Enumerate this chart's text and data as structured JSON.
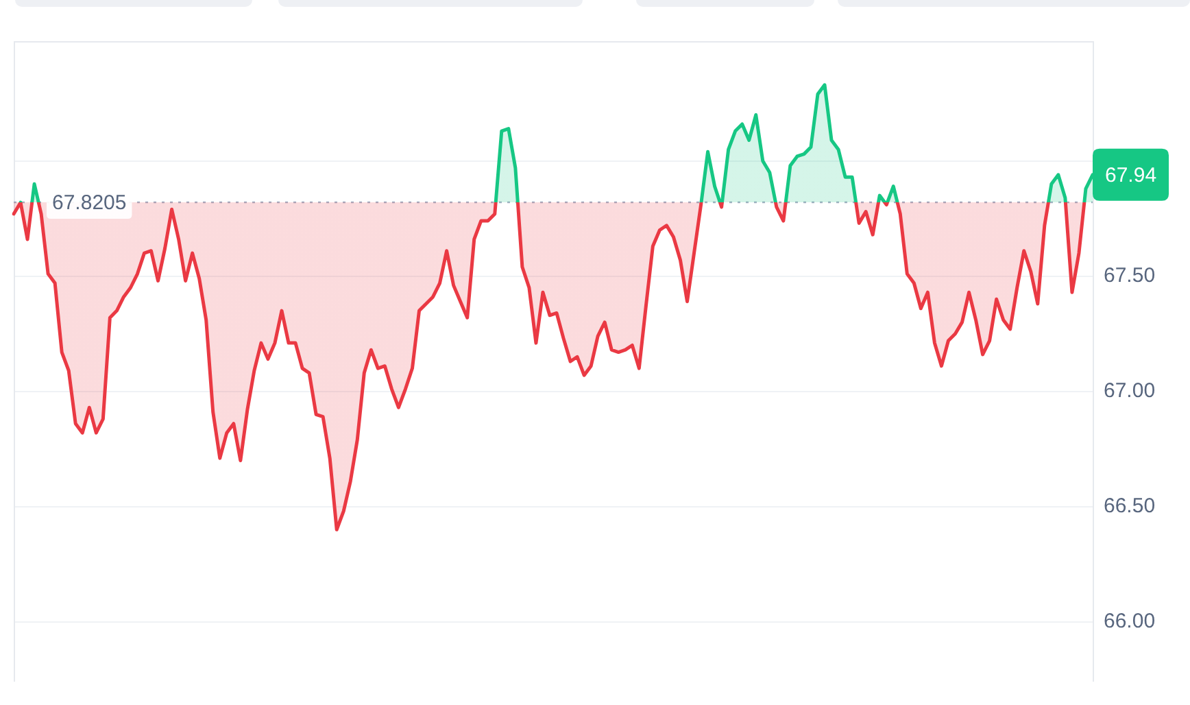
{
  "chart_data": {
    "type": "area",
    "categories": [
      null,
      null,
      null,
      null,
      null,
      null,
      null,
      null,
      null,
      null,
      null,
      null,
      null,
      null,
      null,
      null,
      null,
      null,
      null,
      null,
      null,
      null,
      null,
      null,
      null,
      null,
      null,
      null,
      null,
      null,
      null,
      null,
      null,
      null,
      null,
      null,
      null,
      null,
      null,
      null,
      null,
      null,
      null,
      null,
      null,
      null,
      null,
      null,
      null,
      null,
      null,
      null,
      null,
      null,
      null,
      null,
      null,
      null,
      null,
      null,
      null,
      null,
      null,
      null,
      null,
      null,
      null,
      null,
      null,
      null,
      null,
      null,
      null,
      null,
      null,
      null,
      null,
      null,
      null,
      null,
      null,
      null,
      null,
      null,
      null,
      null,
      null,
      null,
      null,
      null,
      null,
      null,
      null,
      null,
      null,
      null,
      null,
      null,
      null,
      null,
      null,
      null,
      null,
      null,
      null,
      null,
      null,
      null,
      null,
      null,
      null,
      null,
      null,
      null,
      null,
      null,
      null,
      null,
      null,
      null,
      null,
      null,
      null,
      null,
      null,
      null,
      null,
      null,
      null,
      null,
      null,
      null,
      null,
      null,
      null,
      null,
      null,
      null,
      null,
      null,
      null,
      null,
      null,
      null,
      null,
      null,
      null,
      null,
      null,
      null,
      null,
      null,
      null,
      null,
      null,
      null,
      null,
      null
    ],
    "series": [
      {
        "values": [
          67.77,
          67.82,
          67.66,
          67.9,
          67.77,
          67.51,
          67.47,
          67.17,
          67.09,
          66.86,
          66.82,
          66.93,
          66.82,
          66.88,
          67.32,
          67.35,
          67.41,
          67.45,
          67.51,
          67.6,
          67.61,
          67.48,
          67.62,
          67.79,
          67.66,
          67.48,
          67.6,
          67.49,
          67.31,
          66.91,
          66.71,
          66.82,
          66.86,
          66.7,
          66.92,
          67.09,
          67.21,
          67.14,
          67.21,
          67.35,
          67.21,
          67.21,
          67.1,
          67.08,
          66.9,
          66.89,
          66.71,
          66.4,
          66.48,
          66.61,
          66.79,
          67.08,
          67.18,
          67.1,
          67.11,
          67.01,
          66.93,
          67.01,
          67.1,
          67.35,
          67.38,
          67.41,
          67.47,
          67.61,
          67.46,
          67.39,
          67.32,
          67.66,
          67.74,
          67.74,
          67.77,
          68.13,
          68.14,
          67.97,
          67.54,
          67.45,
          67.21,
          67.43,
          67.33,
          67.34,
          67.23,
          67.13,
          67.15,
          67.07,
          67.11,
          67.24,
          67.3,
          67.18,
          67.17,
          67.18,
          67.2,
          67.1,
          67.37,
          67.63,
          67.7,
          67.72,
          67.67,
          67.57,
          67.39,
          67.6,
          67.81,
          68.04,
          67.89,
          67.8,
          68.05,
          68.13,
          68.16,
          68.09,
          68.2,
          68.0,
          67.95,
          67.8,
          67.74,
          67.98,
          68.02,
          68.03,
          68.06,
          68.29,
          68.33,
          68.09,
          68.05,
          67.93,
          67.93,
          67.73,
          67.78,
          67.68,
          67.85,
          67.81,
          67.89,
          67.77,
          67.51,
          67.47,
          67.36,
          67.43,
          67.21,
          67.11,
          67.22,
          67.25,
          67.3,
          67.43,
          67.31,
          67.16,
          67.22,
          67.4,
          67.31,
          67.27,
          67.45,
          67.61,
          67.52,
          67.38,
          67.72,
          67.9,
          67.94,
          67.84,
          67.43,
          67.6,
          67.88,
          67.94
        ],
        "colors": [
          "#ea3943",
          "#ea3943",
          "#ea3943",
          "#16c784",
          "#ea3943",
          "#ea3943",
          "#ea3943",
          "#ea3943",
          "#ea3943",
          "#ea3943",
          "#ea3943",
          "#ea3943",
          "#ea3943",
          "#ea3943",
          "#ea3943",
          "#ea3943",
          "#ea3943",
          "#ea3943",
          "#ea3943",
          "#ea3943",
          "#ea3943",
          "#ea3943",
          "#ea3943",
          "#ea3943",
          "#ea3943",
          "#ea3943",
          "#ea3943",
          "#ea3943",
          "#ea3943",
          "#ea3943",
          "#ea3943",
          "#ea3943",
          "#ea3943",
          "#ea3943",
          "#ea3943",
          "#ea3943",
          "#ea3943",
          "#ea3943",
          "#ea3943",
          "#ea3943",
          "#ea3943",
          "#ea3943",
          "#ea3943",
          "#ea3943",
          "#ea3943",
          "#ea3943",
          "#ea3943",
          "#ea3943",
          "#ea3943",
          "#ea3943",
          "#ea3943",
          "#ea3943",
          "#ea3943",
          "#ea3943",
          "#ea3943",
          "#ea3943",
          "#ea3943",
          "#ea3943",
          "#ea3943",
          "#ea3943",
          "#ea3943",
          "#ea3943",
          "#ea3943",
          "#ea3943",
          "#ea3943",
          "#ea3943",
          "#ea3943",
          "#ea3943",
          "#ea3943",
          "#ea3943",
          "#ea3943",
          "#16c784",
          "#16c784",
          "#16c784",
          "#ea3943",
          "#ea3943",
          "#ea3943",
          "#ea3943",
          "#ea3943",
          "#ea3943",
          "#ea3943",
          "#ea3943",
          "#ea3943",
          "#ea3943",
          "#ea3943",
          "#ea3943",
          "#ea3943",
          "#ea3943",
          "#ea3943",
          "#ea3943",
          "#ea3943",
          "#ea3943",
          "#ea3943",
          "#ea3943",
          "#ea3943",
          "#ea3943",
          "#ea3943",
          "#ea3943",
          "#ea3943",
          "#ea3943",
          "#ea3943",
          "#16c784",
          "#16c784",
          "#ea3943",
          "#16c784",
          "#16c784",
          "#16c784",
          "#16c784",
          "#16c784",
          "#16c784",
          "#16c784",
          "#ea3943",
          "#ea3943",
          "#16c784",
          "#16c784",
          "#16c784",
          "#16c784",
          "#16c784",
          "#16c784",
          "#16c784",
          "#16c784",
          "#16c784",
          "#16c784",
          "#ea3943",
          "#ea3943",
          "#ea3943",
          "#16c784",
          "#ea3943",
          "#16c784",
          "#ea3943",
          "#ea3943",
          "#ea3943",
          "#ea3943",
          "#ea3943",
          "#ea3943",
          "#ea3943",
          "#ea3943",
          "#ea3943",
          "#ea3943",
          "#ea3943",
          "#ea3943",
          "#ea3943",
          "#ea3943",
          "#ea3943",
          "#ea3943",
          "#ea3943",
          "#ea3943",
          "#ea3943",
          "#ea3943",
          "#ea3943",
          "#ea3943",
          "#16c784",
          "#16c784",
          "#16c784",
          "#ea3943",
          "#ea3943",
          "#16c784",
          "#16c784"
        ]
      }
    ],
    "ylim": [
      65.74,
      68.52
    ],
    "yticks": [
      {
        "value": 66,
        "label": "66.00"
      },
      {
        "value": 66.5,
        "label": "66.50"
      },
      {
        "value": 67,
        "label": "67.00"
      },
      {
        "value": 67.5,
        "label": "67.50"
      },
      {
        "value": 68,
        "label": null
      }
    ],
    "grid": "y",
    "tick_labels": "y",
    "marker": "none",
    "ref_lines": [
      {
        "axis": "y",
        "value": 67.8205,
        "label": "67.8205",
        "color": "#a6b0c3",
        "line_style": "dotted"
      }
    ],
    "annotations": [
      "67.94"
    ]
  }
}
